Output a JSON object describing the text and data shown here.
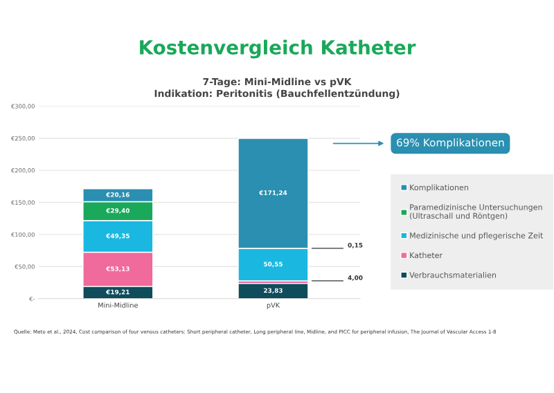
{
  "chart_data": {
    "type": "bar",
    "stacked": true,
    "title": "Kostenvergleich Katheter",
    "subtitle": "7-Tage: Mini-Midline vs pVK\nIndikation: Peritonitis (Bauchfellentzündung)",
    "categories": [
      "Mini-Midline",
      "pVK"
    ],
    "series": [
      {
        "name": "Verbrauchsmaterialien",
        "color": "#0f4c5c",
        "values": [
          19.21,
          23.83
        ],
        "value_labels": [
          "€19,21",
          "23,83"
        ]
      },
      {
        "name": "Katheter",
        "color": "#f06a9c",
        "values": [
          53.13,
          4.0
        ],
        "value_labels": [
          "€53,13",
          "4,00"
        ]
      },
      {
        "name": "Medizinische und pflegerische Zeit",
        "color": "#1ab8e0",
        "values": [
          49.35,
          50.55
        ],
        "value_labels": [
          "€49,35",
          "50,55"
        ]
      },
      {
        "name": "Paramedizinische Untersuchungen\n(Ultraschall und Röntgen)",
        "color": "#1aa85a",
        "values": [
          29.4,
          0.15
        ],
        "value_labels": [
          "€29,40",
          "0,15"
        ]
      },
      {
        "name": "Komplikationen",
        "color": "#2a8fb0",
        "values": [
          20.16,
          171.24
        ],
        "value_labels": [
          "€20,16",
          "€171,24"
        ]
      }
    ],
    "ylim": [
      0,
      300
    ],
    "yticks": [
      {
        "value": 0,
        "label": "€-"
      },
      {
        "value": 50,
        "label": "€50,00"
      },
      {
        "value": 100,
        "label": "€100,00"
      },
      {
        "value": 150,
        "label": "€150,00"
      },
      {
        "value": 200,
        "label": "€200,00"
      },
      {
        "value": 250,
        "label": "€250,00"
      },
      {
        "value": 300,
        "label": "€300,00"
      }
    ],
    "grid": "y",
    "legend": "right",
    "annotations": [
      "69% Komplikationen",
      "Quelle: Meto et al., 2024, Cost comparison of four venous catheters: Short peripheral catheter, Long peripheral line, Midline, and PICC for peripheral infusion, The Journal of Vascular Access 1-8"
    ]
  }
}
